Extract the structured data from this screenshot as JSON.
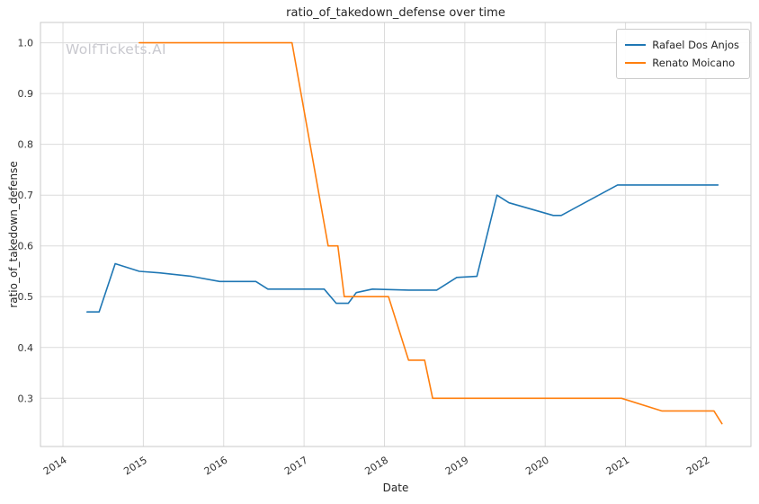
{
  "chart_data": {
    "type": "line",
    "title": "ratio_of_takedown_defense over time",
    "xlabel": "Date",
    "ylabel": "ratio_of_takedown_defense",
    "watermark": "WolfTickets.AI",
    "grid": true,
    "legend_position": "upper right",
    "x_ticks": [
      2014,
      2015,
      2016,
      2017,
      2018,
      2019,
      2020,
      2021,
      2022
    ],
    "y_ticks": [
      0.3,
      0.4,
      0.5,
      0.6,
      0.7,
      0.8,
      0.9,
      1.0
    ],
    "x_range": [
      2013.72,
      2022.56
    ],
    "y_range": [
      0.205,
      1.04
    ],
    "series": [
      {
        "name": "Rafael Dos Anjos",
        "color": "#1f77b4",
        "points": [
          [
            2014.3,
            0.47
          ],
          [
            2014.45,
            0.47
          ],
          [
            2014.65,
            0.565
          ],
          [
            2014.95,
            0.55
          ],
          [
            2015.2,
            0.547
          ],
          [
            2015.6,
            0.54
          ],
          [
            2015.95,
            0.53
          ],
          [
            2016.4,
            0.53
          ],
          [
            2016.55,
            0.515
          ],
          [
            2017.25,
            0.515
          ],
          [
            2017.4,
            0.487
          ],
          [
            2017.55,
            0.487
          ],
          [
            2017.65,
            0.508
          ],
          [
            2017.85,
            0.515
          ],
          [
            2018.3,
            0.513
          ],
          [
            2018.65,
            0.513
          ],
          [
            2018.9,
            0.538
          ],
          [
            2019.15,
            0.54
          ],
          [
            2019.4,
            0.7
          ],
          [
            2019.55,
            0.685
          ],
          [
            2020.1,
            0.66
          ],
          [
            2020.2,
            0.66
          ],
          [
            2020.9,
            0.72
          ],
          [
            2022.15,
            0.72
          ]
        ]
      },
      {
        "name": "Renato Moicano",
        "color": "#ff7f0e",
        "points": [
          [
            2014.95,
            1.0
          ],
          [
            2016.85,
            1.0
          ],
          [
            2017.3,
            0.6
          ],
          [
            2017.42,
            0.6
          ],
          [
            2017.5,
            0.5
          ],
          [
            2018.05,
            0.5
          ],
          [
            2018.3,
            0.375
          ],
          [
            2018.5,
            0.375
          ],
          [
            2018.6,
            0.3
          ],
          [
            2020.95,
            0.3
          ],
          [
            2021.45,
            0.275
          ],
          [
            2022.1,
            0.275
          ],
          [
            2022.2,
            0.25
          ]
        ]
      }
    ]
  }
}
